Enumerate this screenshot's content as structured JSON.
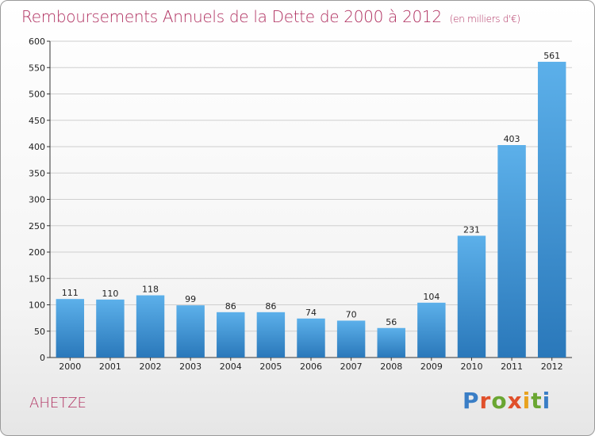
{
  "header": {
    "title": "Remboursements Annuels de la Dette de 2000 à 2012",
    "unit": "(en milliers d'€)"
  },
  "footer": {
    "commune": "AHETZE",
    "logo_text": "Proxiti"
  },
  "colors": {
    "title": "#b03060",
    "bar_light": "#5aa9e6",
    "bar_dark": "#2a79bb",
    "grid": "#cccccc"
  },
  "chart_data": {
    "type": "bar",
    "title": "Remboursements Annuels de la Dette de 2000 à 2012",
    "subtitle": "(en milliers d'€)",
    "xlabel": "",
    "ylabel": "",
    "categories": [
      "2000",
      "2001",
      "2002",
      "2003",
      "2004",
      "2005",
      "2006",
      "2007",
      "2008",
      "2009",
      "2010",
      "2011",
      "2012"
    ],
    "values": [
      111,
      110,
      118,
      99,
      86,
      86,
      74,
      70,
      56,
      104,
      231,
      403,
      561
    ],
    "ylim": [
      0,
      600
    ],
    "yticks": [
      0,
      50,
      100,
      150,
      200,
      250,
      300,
      350,
      400,
      450,
      500,
      550,
      600
    ],
    "grid": true,
    "data_labels": true
  }
}
